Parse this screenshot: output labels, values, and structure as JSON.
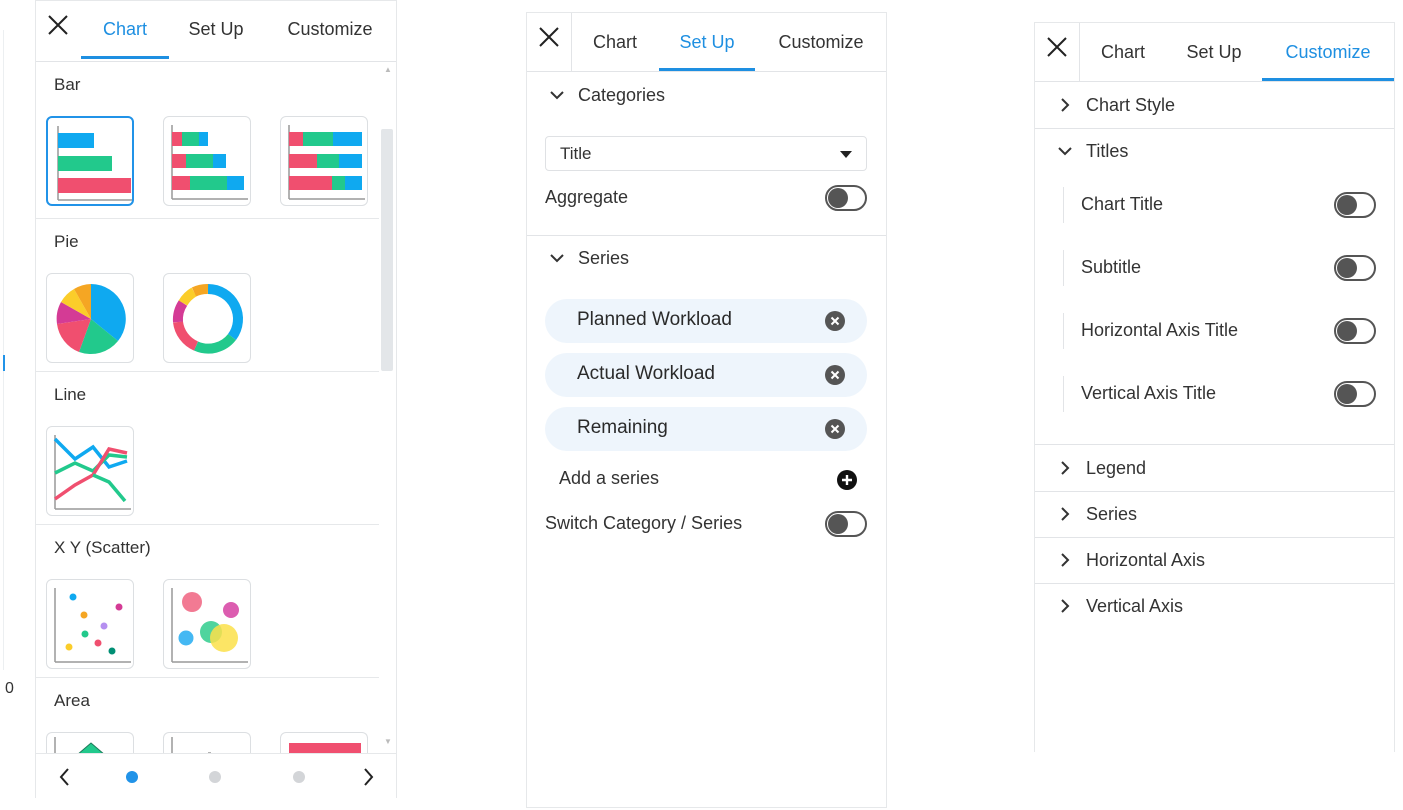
{
  "chart_panel": {
    "tabs": [
      {
        "label": "Chart"
      },
      {
        "label": "Set Up"
      },
      {
        "label": "Customize"
      }
    ],
    "active_tab": "Chart",
    "categories": [
      {
        "label": "Bar"
      },
      {
        "label": "Pie"
      },
      {
        "label": "Line"
      },
      {
        "label": "X Y (Scatter)"
      },
      {
        "label": "Area"
      }
    ],
    "pager": {
      "pages": 3,
      "current": 1
    }
  },
  "setup_panel": {
    "tabs": [
      {
        "label": "Chart"
      },
      {
        "label": "Set Up"
      },
      {
        "label": "Customize"
      }
    ],
    "active_tab": "Set Up",
    "categories_header": "Categories",
    "category_select_value": "Title",
    "aggregate_label": "Aggregate",
    "aggregate_on": false,
    "series_header": "Series",
    "series": [
      {
        "label": "Planned Workload"
      },
      {
        "label": "Actual Workload"
      },
      {
        "label": "Remaining"
      }
    ],
    "add_series_label": "Add a series",
    "switch_label": "Switch Category / Series",
    "switch_on": false
  },
  "customize_panel": {
    "tabs": [
      {
        "label": "Chart"
      },
      {
        "label": "Set Up"
      },
      {
        "label": "Customize"
      }
    ],
    "active_tab": "Customize",
    "sections": {
      "chart_style": "Chart Style",
      "titles": "Titles",
      "legend": "Legend",
      "series": "Series",
      "horizontal_axis": "Horizontal Axis",
      "vertical_axis": "Vertical Axis"
    },
    "title_toggles": [
      {
        "label": "Chart Title",
        "on": false
      },
      {
        "label": "Subtitle",
        "on": false
      },
      {
        "label": "Horizontal Axis Title",
        "on": false
      },
      {
        "label": "Vertical Axis Title",
        "on": false
      }
    ]
  },
  "background_text": {
    "zero_label": "0"
  },
  "colors": {
    "accent": "#1e8fe1",
    "bar_blue": "#0fa9f0",
    "bar_green": "#22c98c",
    "bar_red": "#f04f6f",
    "pie_yellow": "#fbcd2a",
    "pie_orange": "#f5a623",
    "pie_magenta": "#d43b95"
  }
}
